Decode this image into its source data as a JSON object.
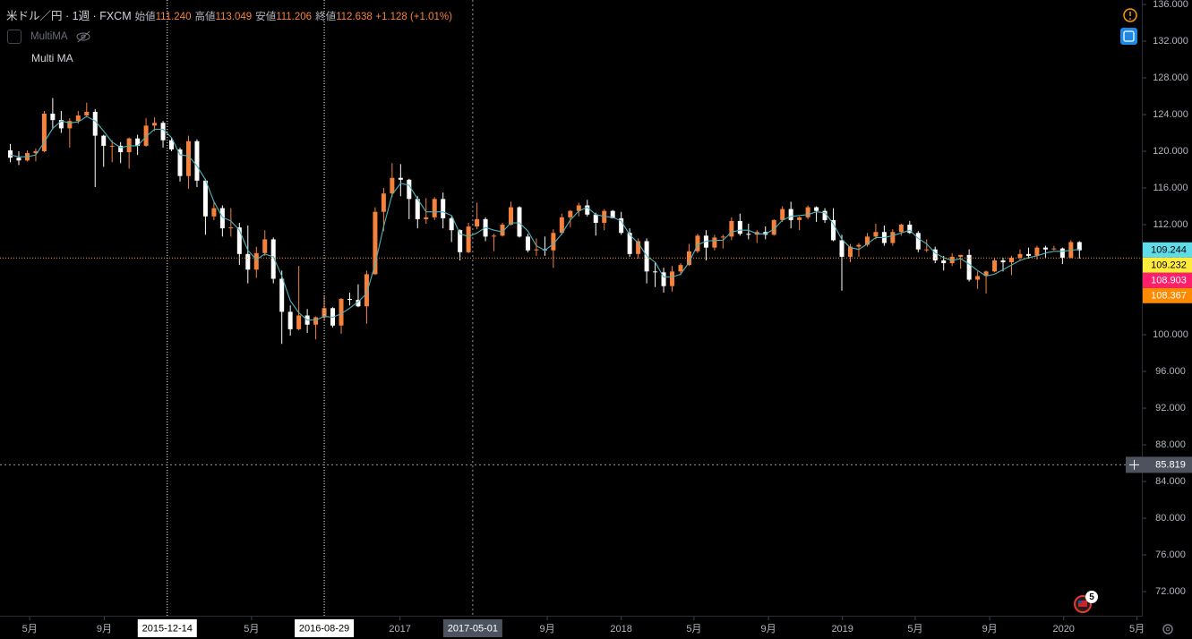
{
  "header": {
    "symbol": "米ドル／円",
    "interval": "1週",
    "exchange": "FXCM",
    "ohlc": [
      {
        "label": "始値",
        "value": "111.240"
      },
      {
        "label": "高値",
        "value": "113.049"
      },
      {
        "label": "安値",
        "value": "111.206"
      },
      {
        "label": "終値",
        "value": "112.638"
      }
    ],
    "change": "+1.128 (+1.01%)"
  },
  "indicator": {
    "short_name": "MultiMA",
    "name": "Multi MA"
  },
  "events_count": "5",
  "chart_data": {
    "type": "candlestick",
    "up_color": "#f5813a",
    "down_color": "#ffffff",
    "xlim": [
      "2015-03-13",
      "2020-05-09"
    ],
    "ylim": [
      69.37,
      136.49
    ],
    "yticks": [
      {
        "value": 136,
        "label": "136.000"
      },
      {
        "value": 132,
        "label": "132.000"
      },
      {
        "value": 128,
        "label": "128.000"
      },
      {
        "value": 124,
        "label": "124.000"
      },
      {
        "value": 120,
        "label": "120.000"
      },
      {
        "value": 116,
        "label": "116.000"
      },
      {
        "value": 112,
        "label": "112.000"
      },
      {
        "value": 108,
        "label": "108.000"
      },
      {
        "value": 104,
        "label": "104.000"
      },
      {
        "value": 100,
        "label": "100.000"
      },
      {
        "value": 96,
        "label": "96.000"
      },
      {
        "value": 92,
        "label": "92.000"
      },
      {
        "value": 88,
        "label": "88.000"
      },
      {
        "value": 84,
        "label": "84.000"
      },
      {
        "value": 80,
        "label": "80.000"
      },
      {
        "value": 76,
        "label": "76.000"
      },
      {
        "value": 72,
        "label": "72.000"
      }
    ],
    "xticks": [
      {
        "value": "2015-05-01",
        "label": "5月"
      },
      {
        "value": "2015-09-01",
        "label": "9月"
      },
      {
        "value": "2016-05-01",
        "label": "5月"
      },
      {
        "value": "2017-01-01",
        "label": "2017"
      },
      {
        "value": "2017-09-01",
        "label": "9月"
      },
      {
        "value": "2018-01-01",
        "label": "2018"
      },
      {
        "value": "2018-05-01",
        "label": "5月"
      },
      {
        "value": "2018-09-01",
        "label": "9月"
      },
      {
        "value": "2019-01-01",
        "label": "2019"
      },
      {
        "value": "2019-05-01",
        "label": "5月"
      },
      {
        "value": "2019-09-01",
        "label": "9月"
      },
      {
        "value": "2020-01-01",
        "label": "2020"
      },
      {
        "value": "2020-05-01",
        "label": "5月"
      }
    ],
    "markers": [
      "2015-12-14",
      "2016-08-29"
    ],
    "crosshair": {
      "x": "2017-05-01",
      "y": 85.819
    },
    "price_labels": [
      {
        "value": 109.244,
        "color": "#5fdcea"
      },
      {
        "value": 109.232,
        "color": "#ffeb3b"
      },
      {
        "value": 108.903,
        "color": "#ff1f6b"
      },
      {
        "value": 108.367,
        "color": "#ff8a00"
      }
    ],
    "x": [
      "2015-03-30",
      "2015-04-13",
      "2015-04-27",
      "2015-05-11",
      "2015-05-25",
      "2015-06-08",
      "2015-06-22",
      "2015-07-06",
      "2015-07-20",
      "2015-08-03",
      "2015-08-17",
      "2015-08-31",
      "2015-09-14",
      "2015-09-28",
      "2015-10-12",
      "2015-10-26",
      "2015-11-09",
      "2015-11-23",
      "2015-12-07",
      "2015-12-21",
      "2016-01-04",
      "2016-01-18",
      "2016-02-01",
      "2016-02-15",
      "2016-02-29",
      "2016-03-14",
      "2016-03-28",
      "2016-04-11",
      "2016-04-25",
      "2016-05-09",
      "2016-05-23",
      "2016-06-06",
      "2016-06-20",
      "2016-07-04",
      "2016-07-18",
      "2016-08-01",
      "2016-08-15",
      "2016-08-29",
      "2016-09-12",
      "2016-09-26",
      "2016-10-10",
      "2016-10-24",
      "2016-11-07",
      "2016-11-21",
      "2016-12-05",
      "2016-12-19",
      "2017-01-02",
      "2017-01-16",
      "2017-01-30",
      "2017-02-13",
      "2017-02-27",
      "2017-03-13",
      "2017-03-27",
      "2017-04-10",
      "2017-04-24",
      "2017-05-08",
      "2017-05-22",
      "2017-06-05",
      "2017-06-19",
      "2017-07-03",
      "2017-07-17",
      "2017-07-31",
      "2017-08-14",
      "2017-08-28",
      "2017-09-11",
      "2017-09-25",
      "2017-10-09",
      "2017-10-23",
      "2017-11-06",
      "2017-11-20",
      "2017-12-04",
      "2017-12-18",
      "2018-01-01",
      "2018-01-15",
      "2018-01-29",
      "2018-02-12",
      "2018-02-26",
      "2018-03-12",
      "2018-03-26",
      "2018-04-09",
      "2018-04-23",
      "2018-05-07",
      "2018-05-21",
      "2018-06-04",
      "2018-06-18",
      "2018-07-02",
      "2018-07-16",
      "2018-07-30",
      "2018-08-13",
      "2018-08-27",
      "2018-09-10",
      "2018-09-24",
      "2018-10-08",
      "2018-10-22",
      "2018-11-05",
      "2018-11-19",
      "2018-12-03",
      "2018-12-17",
      "2018-12-31",
      "2019-01-14",
      "2019-01-28",
      "2019-02-11",
      "2019-02-25",
      "2019-03-11",
      "2019-03-25",
      "2019-04-08",
      "2019-04-22",
      "2019-05-06",
      "2019-05-20",
      "2019-06-03",
      "2019-06-17",
      "2019-07-01",
      "2019-07-15",
      "2019-07-29",
      "2019-08-12",
      "2019-08-26",
      "2019-09-09",
      "2019-09-23",
      "2019-10-07",
      "2019-10-21",
      "2019-11-04",
      "2019-11-18",
      "2019-12-02",
      "2019-12-16",
      "2019-12-30",
      "2020-01-13",
      "2020-01-27"
    ],
    "ohlc": [
      [
        120.1,
        120.8,
        118.8,
        119.3
      ],
      [
        119.3,
        120.0,
        118.5,
        119.0
      ],
      [
        119.0,
        120.1,
        118.9,
        119.8
      ],
      [
        119.8,
        120.3,
        118.9,
        120.0
      ],
      [
        120.0,
        124.4,
        119.9,
        124.1
      ],
      [
        124.1,
        125.8,
        122.4,
        123.4
      ],
      [
        123.4,
        124.4,
        122.0,
        122.5
      ],
      [
        122.5,
        123.6,
        120.4,
        123.3
      ],
      [
        123.3,
        124.4,
        123.0,
        123.9
      ],
      [
        123.9,
        125.3,
        123.7,
        124.3
      ],
      [
        124.3,
        124.6,
        116.1,
        121.7
      ],
      [
        121.7,
        121.8,
        118.3,
        120.6
      ],
      [
        120.6,
        121.2,
        118.8,
        120.6
      ],
      [
        120.6,
        121.0,
        118.7,
        119.9
      ],
      [
        119.9,
        121.5,
        118.1,
        121.4
      ],
      [
        121.4,
        121.8,
        119.6,
        120.6
      ],
      [
        120.6,
        123.6,
        120.5,
        122.8
      ],
      [
        122.8,
        123.7,
        122.2,
        123.1
      ],
      [
        123.1,
        123.3,
        120.4,
        121.2
      ],
      [
        121.2,
        121.5,
        120.0,
        120.2
      ],
      [
        120.2,
        120.4,
        116.7,
        117.3
      ],
      [
        117.3,
        121.7,
        115.9,
        121.1
      ],
      [
        121.1,
        121.3,
        116.1,
        116.8
      ],
      [
        116.8,
        117.0,
        110.9,
        112.9
      ],
      [
        112.9,
        114.6,
        112.5,
        113.8
      ],
      [
        113.8,
        114.1,
        110.7,
        111.6
      ],
      [
        111.6,
        113.8,
        110.7,
        111.7
      ],
      [
        111.7,
        112.2,
        107.6,
        108.8
      ],
      [
        108.8,
        111.9,
        105.6,
        107.1
      ],
      [
        107.1,
        109.6,
        106.2,
        108.9
      ],
      [
        108.9,
        111.4,
        108.6,
        110.4
      ],
      [
        110.4,
        110.6,
        105.6,
        106.1
      ],
      [
        106.1,
        107.0,
        99.0,
        102.5
      ],
      [
        102.5,
        103.2,
        99.9,
        100.6
      ],
      [
        100.6,
        107.5,
        100.5,
        102.1
      ],
      [
        102.1,
        102.8,
        100.2,
        101.1
      ],
      [
        101.1,
        102.0,
        99.5,
        101.9
      ],
      [
        101.9,
        104.3,
        101.5,
        102.9
      ],
      [
        102.9,
        103.0,
        100.8,
        101.0
      ],
      [
        101.0,
        104.0,
        100.1,
        103.9
      ],
      [
        103.9,
        104.6,
        103.2,
        103.8
      ],
      [
        103.8,
        105.5,
        103.0,
        103.1
      ],
      [
        103.1,
        107.0,
        101.2,
        106.6
      ],
      [
        106.6,
        113.9,
        106.5,
        113.4
      ],
      [
        113.4,
        116.0,
        111.3,
        115.4
      ],
      [
        115.4,
        118.7,
        115.0,
        117.1
      ],
      [
        117.1,
        118.6,
        115.1,
        116.9
      ],
      [
        116.9,
        117.0,
        112.6,
        114.8
      ],
      [
        114.8,
        115.1,
        111.6,
        112.6
      ],
      [
        112.6,
        114.9,
        112.1,
        112.8
      ],
      [
        112.8,
        115.0,
        112.5,
        114.8
      ],
      [
        114.8,
        115.5,
        111.6,
        112.7
      ],
      [
        112.7,
        112.9,
        110.1,
        111.4
      ],
      [
        111.4,
        111.5,
        108.1,
        109.0
      ],
      [
        109.0,
        112.2,
        108.9,
        111.8
      ],
      [
        111.8,
        114.4,
        111.5,
        112.6
      ],
      [
        112.6,
        112.8,
        110.2,
        110.7
      ],
      [
        110.7,
        111.0,
        109.1,
        110.8
      ],
      [
        110.8,
        112.2,
        110.7,
        112.0
      ],
      [
        112.0,
        114.5,
        111.9,
        113.9
      ],
      [
        113.9,
        114.0,
        110.6,
        110.7
      ],
      [
        110.7,
        111.0,
        109.0,
        109.2
      ],
      [
        109.2,
        110.5,
        108.6,
        109.3
      ],
      [
        109.3,
        110.7,
        108.6,
        109.2
      ],
      [
        109.2,
        111.5,
        107.3,
        111.1
      ],
      [
        111.1,
        113.2,
        110.9,
        112.8
      ],
      [
        112.8,
        113.6,
        111.7,
        113.5
      ],
      [
        113.5,
        114.4,
        112.9,
        114.1
      ],
      [
        114.1,
        114.7,
        112.9,
        113.1
      ],
      [
        113.1,
        113.3,
        110.8,
        112.2
      ],
      [
        112.2,
        113.7,
        111.4,
        113.5
      ],
      [
        113.5,
        113.6,
        112.7,
        112.7
      ],
      [
        112.7,
        113.4,
        110.9,
        111.1
      ],
      [
        111.1,
        111.6,
        108.5,
        108.8
      ],
      [
        108.8,
        110.5,
        108.3,
        110.2
      ],
      [
        110.2,
        110.5,
        105.6,
        106.9
      ],
      [
        106.9,
        107.9,
        105.2,
        106.8
      ],
      [
        106.8,
        107.3,
        104.6,
        105.3
      ],
      [
        105.3,
        107.5,
        104.7,
        106.9
      ],
      [
        106.9,
        107.8,
        106.5,
        107.6
      ],
      [
        107.6,
        109.9,
        107.5,
        109.1
      ],
      [
        109.1,
        111.0,
        108.9,
        110.8
      ],
      [
        110.8,
        111.4,
        108.1,
        109.5
      ],
      [
        109.5,
        110.9,
        109.2,
        110.6
      ],
      [
        110.6,
        110.9,
        109.4,
        110.7
      ],
      [
        110.7,
        112.8,
        110.3,
        112.4
      ],
      [
        112.4,
        113.2,
        110.8,
        111.0
      ],
      [
        111.0,
        112.1,
        110.4,
        110.9
      ],
      [
        110.9,
        111.4,
        110.0,
        111.2
      ],
      [
        111.2,
        111.8,
        110.4,
        110.9
      ],
      [
        110.9,
        112.6,
        110.8,
        112.5
      ],
      [
        112.5,
        114.0,
        112.3,
        113.7
      ],
      [
        113.7,
        114.5,
        111.6,
        112.5
      ],
      [
        112.5,
        112.9,
        111.4,
        112.8
      ],
      [
        112.8,
        114.1,
        112.6,
        113.9
      ],
      [
        113.9,
        114.0,
        112.3,
        113.5
      ],
      [
        113.5,
        113.8,
        112.2,
        112.5
      ],
      [
        112.5,
        113.8,
        110.2,
        110.3
      ],
      [
        110.3,
        110.9,
        104.8,
        108.5
      ],
      [
        108.5,
        109.9,
        107.9,
        109.6
      ],
      [
        109.6,
        110.0,
        108.5,
        109.8
      ],
      [
        109.8,
        111.1,
        109.6,
        110.7
      ],
      [
        110.7,
        112.1,
        110.4,
        111.2
      ],
      [
        111.2,
        111.9,
        109.7,
        110.0
      ],
      [
        110.0,
        111.5,
        109.7,
        111.2
      ],
      [
        111.2,
        112.1,
        110.8,
        112.0
      ],
      [
        112.0,
        112.4,
        111.0,
        111.1
      ],
      [
        111.1,
        111.3,
        109.0,
        109.3
      ],
      [
        109.3,
        110.4,
        109.0,
        109.3
      ],
      [
        109.3,
        109.6,
        107.8,
        108.1
      ],
      [
        108.1,
        108.6,
        107.0,
        107.8
      ],
      [
        107.8,
        108.9,
        107.5,
        108.5
      ],
      [
        108.5,
        108.7,
        107.2,
        108.7
      ],
      [
        108.7,
        109.3,
        105.8,
        106.0
      ],
      [
        106.0,
        106.9,
        105.0,
        106.4
      ],
      [
        106.4,
        107.0,
        104.5,
        106.9
      ],
      [
        106.9,
        108.4,
        106.8,
        108.1
      ],
      [
        108.1,
        108.4,
        106.9,
        107.9
      ],
      [
        107.9,
        108.6,
        106.5,
        108.4
      ],
      [
        108.4,
        109.3,
        108.1,
        108.8
      ],
      [
        108.8,
        109.5,
        108.3,
        108.6
      ],
      [
        108.6,
        109.7,
        108.2,
        109.5
      ],
      [
        109.5,
        109.7,
        108.4,
        109.3
      ],
      [
        109.3,
        109.7,
        109.2,
        109.4
      ],
      [
        109.4,
        109.5,
        107.7,
        108.4
      ],
      [
        108.4,
        110.3,
        108.3,
        110.1
      ],
      [
        110.1,
        110.2,
        108.3,
        109.2
      ]
    ],
    "ma": {
      "color": "#4fb3bf",
      "values": [
        119.6,
        119.4,
        119.4,
        119.6,
        121.0,
        122.5,
        123.3,
        123.1,
        123.2,
        123.8,
        123.3,
        122.2,
        121.0,
        120.4,
        120.6,
        120.6,
        121.6,
        122.4,
        122.4,
        121.5,
        119.6,
        119.5,
        118.4,
        116.9,
        114.5,
        112.8,
        112.4,
        111.4,
        109.2,
        108.2,
        108.8,
        108.5,
        106.4,
        103.7,
        102.4,
        101.6,
        101.6,
        102.0,
        101.9,
        102.3,
        102.9,
        103.6,
        104.5,
        107.7,
        111.8,
        115.3,
        116.5,
        116.3,
        114.8,
        113.4,
        113.4,
        113.4,
        113.0,
        111.0,
        110.7,
        111.1,
        111.7,
        111.4,
        111.2,
        112.2,
        112.2,
        111.3,
        109.7,
        109.2,
        109.9,
        111.0,
        112.5,
        113.5,
        113.9,
        113.1,
        112.9,
        112.8,
        112.4,
        110.9,
        110.0,
        108.6,
        107.9,
        106.3,
        106.3,
        106.6,
        107.9,
        109.8,
        110.2,
        110.3,
        110.3,
        111.2,
        111.4,
        111.4,
        111.0,
        111.0,
        111.5,
        112.5,
        112.9,
        113.0,
        113.1,
        113.4,
        113.3,
        112.1,
        110.4,
        109.5,
        109.3,
        109.9,
        110.6,
        110.6,
        110.8,
        111.1,
        111.4,
        110.5,
        109.9,
        108.9,
        108.4,
        108.1,
        108.3,
        107.7,
        107.0,
        106.4,
        106.6,
        107.1,
        107.6,
        108.1,
        108.4,
        108.6,
        108.9,
        109.1,
        109.1,
        109.2,
        109.3
      ]
    }
  }
}
